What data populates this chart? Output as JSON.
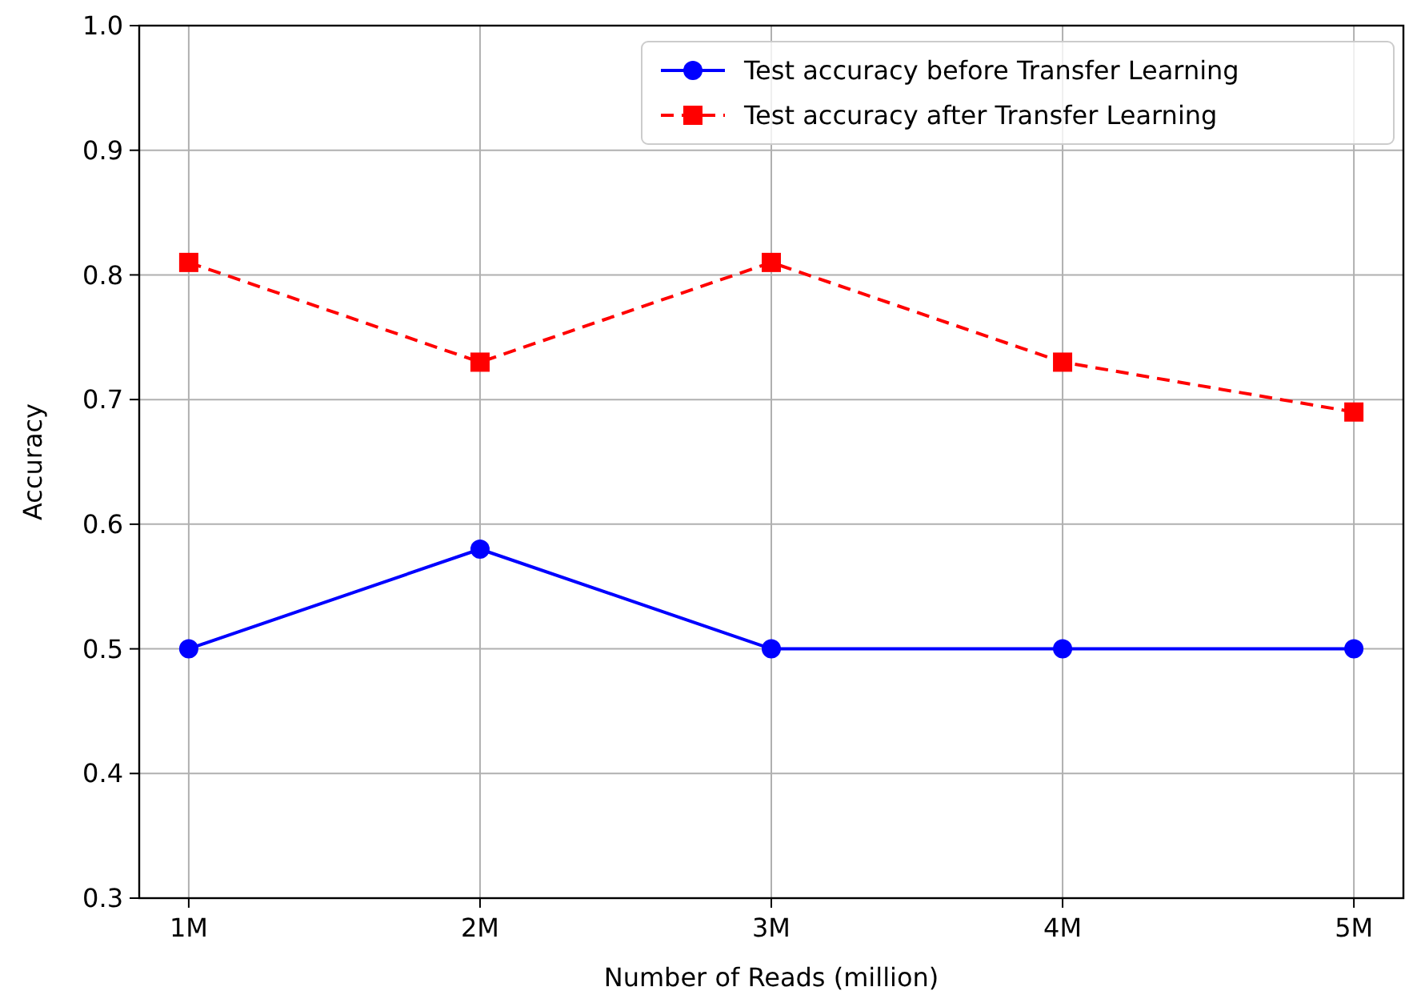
{
  "chart_data": {
    "type": "line",
    "xlabel": "Number of Reads (million)",
    "ylabel": "Accuracy",
    "categories": [
      "1M",
      "2M",
      "3M",
      "4M",
      "5M"
    ],
    "series": [
      {
        "name": "Test accuracy before Transfer Learning",
        "color": "#0000ff",
        "values": [
          0.5,
          0.58,
          0.5,
          0.5,
          0.5
        ],
        "marker": "circle",
        "line_style": "solid"
      },
      {
        "name": "Test accuracy after Transfer Learning",
        "color": "#ff0000",
        "values": [
          0.81,
          0.73,
          0.81,
          0.73,
          0.69
        ],
        "marker": "square",
        "line_style": "dashed"
      }
    ],
    "ylim": [
      0.3,
      1.0
    ],
    "yticks": [
      0.3,
      0.4,
      0.5,
      0.6,
      0.7,
      0.8,
      0.9,
      {
        "value": 1,
        "label": "1.0"
      }
    ],
    "grid": true,
    "legend": "top right"
  }
}
